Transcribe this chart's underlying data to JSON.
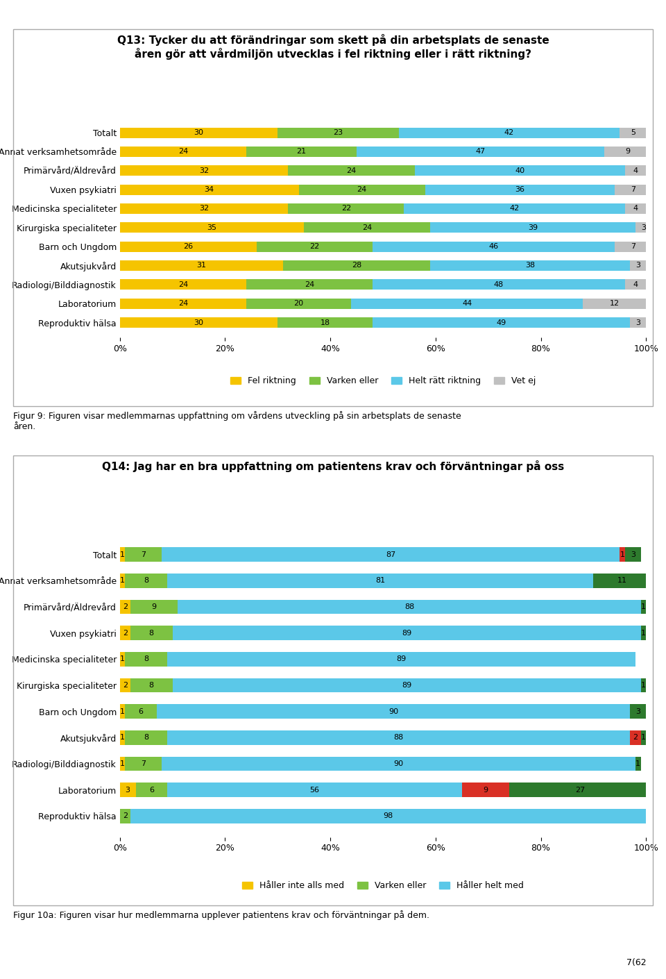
{
  "chart1": {
    "title": "Q13: Tycker du att förändringar som skett på din arbetsplats de senaste\nåren gör att vårdmiljön utvecklas i fel riktning eller i rätt riktning?",
    "categories": [
      "Totalt",
      "Annat verksamhetsområde",
      "Primärvård/Äldrevård",
      "Vuxen psykiatri",
      "Medicinska specialiteter",
      "Kirurgiska specialiteter",
      "Barn och Ungdom",
      "Akutsjukvård",
      "Radiologi/Bilddiagnostik",
      "Laboratorium",
      "Reproduktiv hälsa"
    ],
    "fel_riktning": [
      30,
      24,
      32,
      34,
      32,
      35,
      26,
      31,
      24,
      24,
      30
    ],
    "varken_eller": [
      23,
      21,
      24,
      24,
      22,
      24,
      22,
      28,
      24,
      20,
      18
    ],
    "helt_ratt": [
      42,
      47,
      40,
      36,
      42,
      39,
      46,
      38,
      48,
      44,
      49
    ],
    "vet_ej": [
      5,
      9,
      4,
      7,
      4,
      3,
      7,
      3,
      4,
      12,
      3
    ],
    "colors": {
      "fel_riktning": "#F5C400",
      "varken_eller": "#7DC242",
      "helt_ratt": "#5BC8E8",
      "vet_ej": "#C0C0C0"
    },
    "legend_labels": [
      "Fel riktning",
      "Varken eller",
      "Helt rätt riktning",
      "Vet ej"
    ],
    "figcaption": "Figur 9: Figuren visar medlemmarnas uppfattning om vårdens utveckling på sin arbetsplats de senaste\nåren."
  },
  "chart2": {
    "title": "Q14: Jag har en bra uppfattning om patientens krav och förväntningar på oss",
    "categories": [
      "Totalt",
      "Annat verksamhetsområde",
      "Primärvård/Äldrevård",
      "Vuxen psykiatri",
      "Medicinska specialiteter",
      "Kirurgiska specialiteter",
      "Barn och Ungdom",
      "Akutsjukvård",
      "Radiologi/Bilddiagnostik",
      "Laboratorium",
      "Reproduktiv hälsa"
    ],
    "haller_inte": [
      1,
      1,
      2,
      2,
      1,
      2,
      1,
      1,
      1,
      3,
      0
    ],
    "varken_eller": [
      7,
      8,
      9,
      8,
      8,
      8,
      6,
      8,
      7,
      6,
      2
    ],
    "haller_helt": [
      87,
      81,
      88,
      89,
      89,
      89,
      90,
      88,
      90,
      56,
      98
    ],
    "extra_red": [
      1,
      0,
      0,
      0,
      0,
      0,
      0,
      2,
      0,
      9,
      0
    ],
    "extra_green": [
      3,
      11,
      1,
      1,
      0,
      1,
      3,
      1,
      1,
      27,
      0
    ],
    "colors": {
      "haller_inte": "#F5C400",
      "varken_eller": "#7DC242",
      "haller_helt": "#5BC8E8",
      "extra_red": "#D93025",
      "extra_green": "#2D7A2D"
    },
    "legend_labels": [
      "Håller inte alls med",
      "Varken eller",
      "Håller helt med"
    ],
    "figcaption": "Figur 10a: Figuren visar hur medlemmarna upplever patientens krav och förväntningar på dem."
  },
  "page_number": "7(62",
  "background_color": "#FFFFFF",
  "bar_height": 0.55,
  "fontsize_title": 11,
  "fontsize_label": 9,
  "fontsize_bar": 8,
  "fontsize_caption": 9,
  "fontsize_legend": 9
}
